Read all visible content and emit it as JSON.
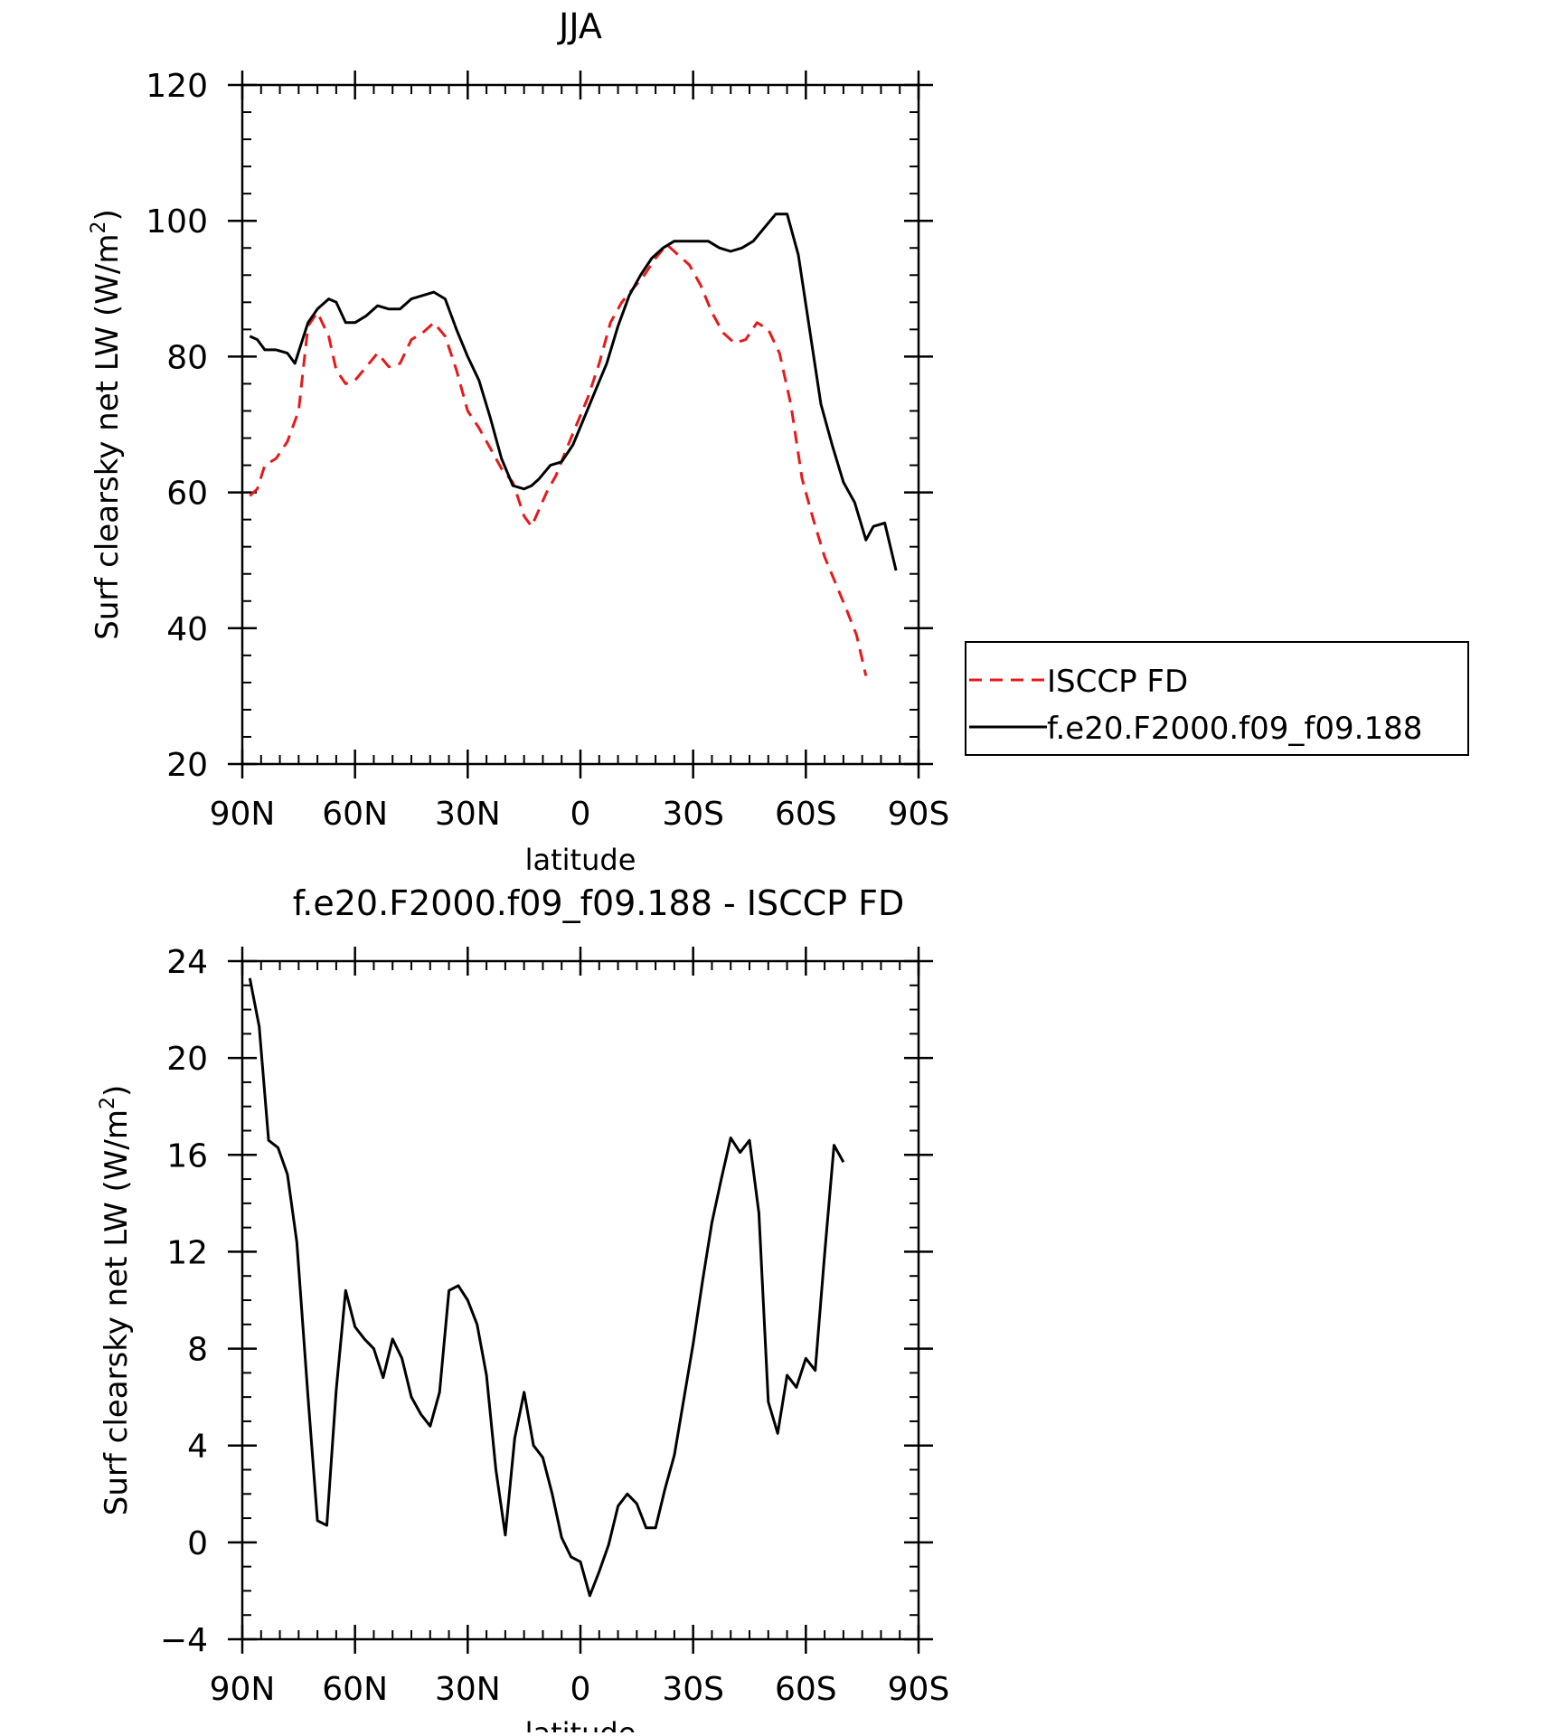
{
  "chart_data": [
    {
      "type": "line",
      "title": "JJA",
      "xlabel": "latitude",
      "ylabel": "Surf clearsky net LW (W/m²)",
      "ylabel_parts": {
        "main": "Surf clearsky net LW (W/m",
        "sup": "2",
        "end": ")"
      },
      "x_axis": "latitude from 90N (left) to 90S (right)",
      "xlim": [
        90,
        -90
      ],
      "ylim": [
        20,
        120
      ],
      "xticks": [
        90,
        60,
        30,
        0,
        -30,
        -60,
        -90
      ],
      "xtick_labels": [
        "90N",
        "60N",
        "30N",
        "0",
        "30S",
        "60S",
        "90S"
      ],
      "yticks": [
        20,
        40,
        60,
        80,
        100,
        120
      ],
      "ytick_labels": [
        "20",
        "40",
        "60",
        "80",
        "100",
        "120"
      ],
      "legend": {
        "placement": "right, outside plot"
      },
      "series": [
        {
          "name": "ISCCP FD",
          "color": "#e8191a",
          "dash": "dashed",
          "points": [
            [
              88,
              59.5
            ],
            [
              86,
              60.5
            ],
            [
              84,
              64
            ],
            [
              81,
              65
            ],
            [
              78,
              67.5
            ],
            [
              75,
              72
            ],
            [
              72.5,
              84.5
            ],
            [
              70,
              86.5
            ],
            [
              67,
              83
            ],
            [
              65,
              78
            ],
            [
              62.5,
              76
            ],
            [
              60,
              76.5
            ],
            [
              57,
              78.5
            ],
            [
              54,
              80.5
            ],
            [
              51,
              78.5
            ],
            [
              48,
              79
            ],
            [
              45,
              82.5
            ],
            [
              42,
              83.5
            ],
            [
              39,
              85
            ],
            [
              36,
              83
            ],
            [
              33,
              78
            ],
            [
              30,
              72
            ],
            [
              27,
              69.5
            ],
            [
              24,
              66.5
            ],
            [
              21,
              63.5
            ],
            [
              18,
              61.5
            ],
            [
              15,
              56.5
            ],
            [
              13,
              55
            ],
            [
              11,
              57.5
            ],
            [
              9,
              60
            ],
            [
              6.5,
              62.5
            ],
            [
              4,
              66
            ],
            [
              1,
              70
            ],
            [
              -2,
              74
            ],
            [
              -5,
              79
            ],
            [
              -8,
              85
            ],
            [
              -11,
              88
            ],
            [
              -14,
              90
            ],
            [
              -17,
              92
            ],
            [
              -20,
              94.5
            ],
            [
              -23,
              96.5
            ],
            [
              -26,
              95
            ],
            [
              -29,
              93.5
            ],
            [
              -32,
              90.5
            ],
            [
              -35,
              86.5
            ],
            [
              -38,
              83.5
            ],
            [
              -41,
              82
            ],
            [
              -44,
              82.5
            ],
            [
              -47,
              85
            ],
            [
              -50,
              84
            ],
            [
              -53,
              80.5
            ],
            [
              -56,
              73
            ],
            [
              -59,
              62
            ],
            [
              -62,
              56
            ],
            [
              -65,
              50.5
            ],
            [
              -68,
              46.5
            ],
            [
              -71,
              42.5
            ],
            [
              -73.5,
              39
            ],
            [
              -76,
              33
            ]
          ]
        },
        {
          "name": "f.e20.F2000.f09_f09.188",
          "color": "#000000",
          "dash": "solid",
          "points": [
            [
              88,
              83
            ],
            [
              86,
              82.5
            ],
            [
              84,
              81
            ],
            [
              81,
              81
            ],
            [
              78,
              80.5
            ],
            [
              76,
              79
            ],
            [
              72.5,
              85
            ],
            [
              70,
              87
            ],
            [
              67,
              88.5
            ],
            [
              65,
              88
            ],
            [
              62.5,
              85
            ],
            [
              60,
              85
            ],
            [
              57,
              86
            ],
            [
              54,
              87.5
            ],
            [
              51,
              87
            ],
            [
              48,
              87
            ],
            [
              45,
              88.5
            ],
            [
              42,
              89
            ],
            [
              39,
              89.5
            ],
            [
              36,
              88.5
            ],
            [
              33,
              84
            ],
            [
              30,
              80
            ],
            [
              27,
              76.5
            ],
            [
              24,
              71
            ],
            [
              21,
              65
            ],
            [
              18,
              61
            ],
            [
              15,
              60.5
            ],
            [
              13,
              61
            ],
            [
              11,
              62
            ],
            [
              8,
              64
            ],
            [
              5,
              64.5
            ],
            [
              2,
              67
            ],
            [
              -1,
              71
            ],
            [
              -4,
              75
            ],
            [
              -7,
              79
            ],
            [
              -10,
              84.5
            ],
            [
              -13,
              89
            ],
            [
              -16,
              92
            ],
            [
              -19,
              94.5
            ],
            [
              -22,
              96
            ],
            [
              -25,
              97
            ],
            [
              -28,
              97
            ],
            [
              -31,
              97
            ],
            [
              -34,
              97
            ],
            [
              -37,
              96
            ],
            [
              -40,
              95.5
            ],
            [
              -43,
              96
            ],
            [
              -46,
              97
            ],
            [
              -49,
              99
            ],
            [
              -52,
              101
            ],
            [
              -55,
              101
            ],
            [
              -58,
              95
            ],
            [
              -61,
              84
            ],
            [
              -64,
              73
            ],
            [
              -67,
              67
            ],
            [
              -70,
              61.5
            ],
            [
              -73,
              58.5
            ],
            [
              -76,
              53
            ],
            [
              -78,
              55
            ],
            [
              -81,
              55.5
            ],
            [
              -84,
              48.5
            ]
          ]
        }
      ]
    },
    {
      "type": "line",
      "title": "f.e20.F2000.f09_f09.188 - ISCCP FD",
      "xlabel": "latitude",
      "ylabel": "Surf clearsky net LW (W/m²)",
      "ylabel_parts": {
        "main": "Surf clearsky net LW (W/m",
        "sup": "2",
        "end": ")"
      },
      "xlim": [
        90,
        -90
      ],
      "ylim": [
        -4,
        24
      ],
      "xticks": [
        90,
        60,
        30,
        0,
        -30,
        -60,
        -90
      ],
      "xtick_labels": [
        "90N",
        "60N",
        "30N",
        "0",
        "30S",
        "60S",
        "90S"
      ],
      "yticks": [
        -4,
        0,
        4,
        8,
        12,
        16,
        20,
        24
      ],
      "ytick_labels": [
        "−4",
        "0",
        "4",
        "8",
        "12",
        "16",
        "20",
        "24"
      ],
      "series": [
        {
          "color": "#000000",
          "dash": "solid",
          "points": [
            [
              88,
              23.3
            ],
            [
              85.5,
              21.3
            ],
            [
              83,
              16.6
            ],
            [
              80.5,
              16.3
            ],
            [
              78,
              15.2
            ],
            [
              75.5,
              12.4
            ],
            [
              72.5,
              6
            ],
            [
              70,
              0.9
            ],
            [
              67.5,
              0.7
            ],
            [
              65,
              6.3
            ],
            [
              62.5,
              10.4
            ],
            [
              60,
              8.9
            ],
            [
              57.5,
              8.4
            ],
            [
              55,
              8
            ],
            [
              52.5,
              6.8
            ],
            [
              50,
              8.4
            ],
            [
              47.5,
              7.6
            ],
            [
              45,
              6
            ],
            [
              42.5,
              5.3
            ],
            [
              40,
              4.8
            ],
            [
              37.5,
              6.2
            ],
            [
              35,
              10.4
            ],
            [
              32.5,
              10.6
            ],
            [
              30,
              10
            ],
            [
              27.5,
              9
            ],
            [
              25,
              6.9
            ],
            [
              22.5,
              3
            ],
            [
              20,
              0.3
            ],
            [
              17.5,
              4.3
            ],
            [
              15,
              6.2
            ],
            [
              12.5,
              4
            ],
            [
              10,
              3.5
            ],
            [
              7.5,
              2
            ],
            [
              5,
              0.2
            ],
            [
              2.5,
              -0.6
            ],
            [
              0,
              -0.8
            ],
            [
              -2.5,
              -2.2
            ],
            [
              -5,
              -1.2
            ],
            [
              -7.5,
              -0.1
            ],
            [
              -10,
              1.5
            ],
            [
              -12.5,
              2
            ],
            [
              -15,
              1.6
            ],
            [
              -17.5,
              0.6
            ],
            [
              -20,
              0.6
            ],
            [
              -22.5,
              2.2
            ],
            [
              -25,
              3.6
            ],
            [
              -27.5,
              5.9
            ],
            [
              -30,
              8.2
            ],
            [
              -32.5,
              10.8
            ],
            [
              -35,
              13.2
            ],
            [
              -37.5,
              15
            ],
            [
              -40,
              16.7
            ],
            [
              -42.5,
              16.1
            ],
            [
              -45,
              16.6
            ],
            [
              -47.5,
              13.6
            ],
            [
              -50,
              5.8
            ],
            [
              -52.5,
              4.5
            ],
            [
              -55,
              6.9
            ],
            [
              -57.5,
              6.4
            ],
            [
              -60,
              7.6
            ],
            [
              -62.5,
              7.1
            ],
            [
              -65,
              11.9
            ],
            [
              -67.5,
              16.4
            ],
            [
              -70,
              15.7
            ]
          ]
        }
      ]
    }
  ]
}
